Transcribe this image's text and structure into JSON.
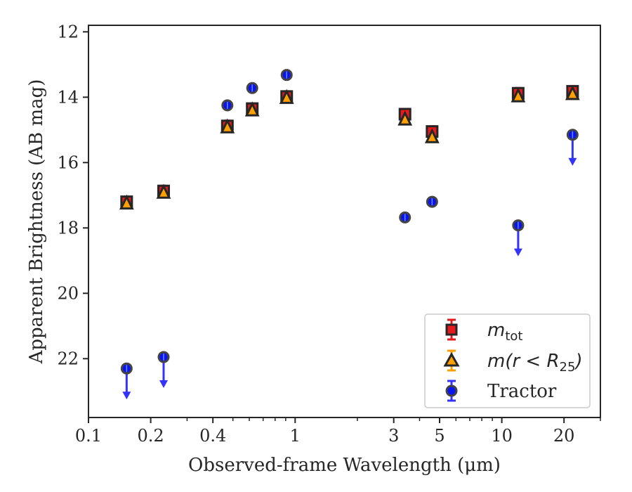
{
  "chart_data": {
    "type": "scatter",
    "xlabel": "Observed-frame Wavelength (μm)",
    "ylabel": "Apparent Brightness (AB mag)",
    "x_scale": "log",
    "xlim": [
      0.1,
      30
    ],
    "ylim": [
      23.8,
      11.8
    ],
    "y_inverted": true,
    "grid": false,
    "legend_position": "lower right",
    "x_ticks": [
      {
        "value": 0.1,
        "label": "0.1"
      },
      {
        "value": 0.2,
        "label": "0.2"
      },
      {
        "value": 0.4,
        "label": "0.4"
      },
      {
        "value": 1,
        "label": "1"
      },
      {
        "value": 3,
        "label": "3"
      },
      {
        "value": 5,
        "label": "5"
      },
      {
        "value": 10,
        "label": "10"
      },
      {
        "value": 20,
        "label": "20"
      }
    ],
    "y_ticks": [
      {
        "value": 12,
        "label": "12"
      },
      {
        "value": 14,
        "label": "14"
      },
      {
        "value": 16,
        "label": "16"
      },
      {
        "value": 18,
        "label": "18"
      },
      {
        "value": 20,
        "label": "20"
      },
      {
        "value": 22,
        "label": "22"
      }
    ],
    "series": [
      {
        "name": "m_tot",
        "legend_main": "m",
        "legend_sub": "tot",
        "marker": "square",
        "color": "#e41a1c",
        "edge_color": "#262626",
        "points": [
          {
            "x": 0.153,
            "y": 17.2
          },
          {
            "x": 0.231,
            "y": 16.87
          },
          {
            "x": 0.47,
            "y": 14.88
          },
          {
            "x": 0.62,
            "y": 14.35
          },
          {
            "x": 0.91,
            "y": 13.98
          },
          {
            "x": 3.4,
            "y": 14.52
          },
          {
            "x": 4.6,
            "y": 15.05
          },
          {
            "x": 12.0,
            "y": 13.88
          },
          {
            "x": 22.0,
            "y": 13.82
          }
        ]
      },
      {
        "name": "m(r < R_25)",
        "legend_main": "m(r < R",
        "legend_sub": "25",
        "legend_tail": ")",
        "marker": "triangle",
        "color": "#ff9f00",
        "edge_color": "#262626",
        "points": [
          {
            "x": 0.153,
            "y": 17.25
          },
          {
            "x": 0.231,
            "y": 16.92
          },
          {
            "x": 0.47,
            "y": 14.92
          },
          {
            "x": 0.62,
            "y": 14.4
          },
          {
            "x": 0.91,
            "y": 14.02
          },
          {
            "x": 3.4,
            "y": 14.68
          },
          {
            "x": 4.6,
            "y": 15.22
          },
          {
            "x": 12.0,
            "y": 13.97
          },
          {
            "x": 22.0,
            "y": 13.9
          }
        ]
      },
      {
        "name": "Tractor",
        "marker": "circle",
        "color": "#0a14f0",
        "edge_color": "#444444",
        "arrow_color": "#3333ff",
        "points": [
          {
            "x": 0.153,
            "y": 22.3,
            "upper_limit": true
          },
          {
            "x": 0.231,
            "y": 21.95,
            "upper_limit": true
          },
          {
            "x": 0.47,
            "y": 14.25
          },
          {
            "x": 0.62,
            "y": 13.72
          },
          {
            "x": 0.91,
            "y": 13.32
          },
          {
            "x": 3.4,
            "y": 17.68
          },
          {
            "x": 4.6,
            "y": 17.2
          },
          {
            "x": 12.0,
            "y": 17.92,
            "upper_limit": true
          },
          {
            "x": 22.0,
            "y": 15.15,
            "upper_limit": true
          }
        ]
      }
    ]
  }
}
